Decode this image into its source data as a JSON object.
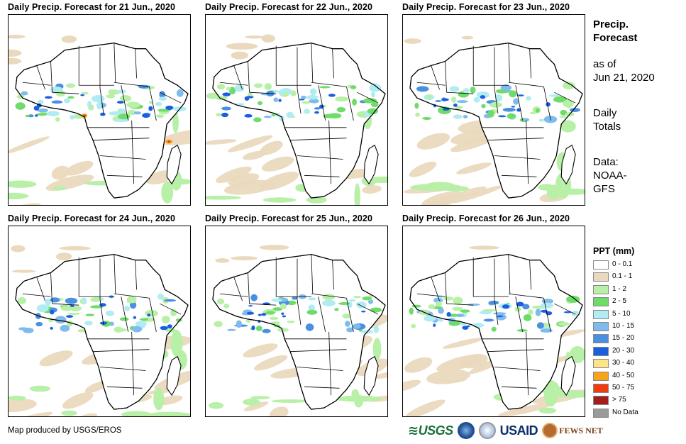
{
  "panels": [
    {
      "title": "Daily Precip. Forecast for 21 Jun., 2020"
    },
    {
      "title": "Daily Precip. Forecast for 22 Jun., 2020"
    },
    {
      "title": "Daily Precip. Forecast for 23 Jun., 2020"
    },
    {
      "title": "Daily Precip. Forecast for 24 Jun., 2020"
    },
    {
      "title": "Daily Precip. Forecast for 25 Jun., 2020"
    },
    {
      "title": "Daily Precip. Forecast for 26 Jun., 2020"
    }
  ],
  "info": {
    "title_line1": "Precip.",
    "title_line2": "Forecast",
    "asof_line1": "as of",
    "asof_line2": "Jun 21, 2020",
    "totals_line1": "Daily",
    "totals_line2": "Totals",
    "data_line1": "Data:",
    "data_line2": "NOAA-",
    "data_line3": "GFS"
  },
  "legend": {
    "title": "PPT (mm)",
    "items": [
      {
        "label": "0 - 0.1",
        "color": "#ffffff"
      },
      {
        "label": "0.1 - 1",
        "color": "#ead9bd"
      },
      {
        "label": "1 - 2",
        "color": "#b8f0a8"
      },
      {
        "label": "2 - 5",
        "color": "#6fdc6a"
      },
      {
        "label": "5 - 10",
        "color": "#b0ecf2"
      },
      {
        "label": "10 - 15",
        "color": "#7fbbec"
      },
      {
        "label": "15 - 20",
        "color": "#4a90e0"
      },
      {
        "label": "20 - 30",
        "color": "#1a5fe0"
      },
      {
        "label": "30 - 40",
        "color": "#fde488"
      },
      {
        "label": "40 - 50",
        "color": "#f9a21c"
      },
      {
        "label": "50 - 75",
        "color": "#f03c0e"
      },
      {
        "label": "> 75",
        "color": "#a41c1c"
      },
      {
        "label": "No Data",
        "color": "#9a9a9a"
      }
    ]
  },
  "footer": {
    "credit": "Map produced by USGS/EROS"
  },
  "logos": {
    "usgs": "USGS",
    "usaid": "USAID",
    "fews": "FEWS NET"
  }
}
